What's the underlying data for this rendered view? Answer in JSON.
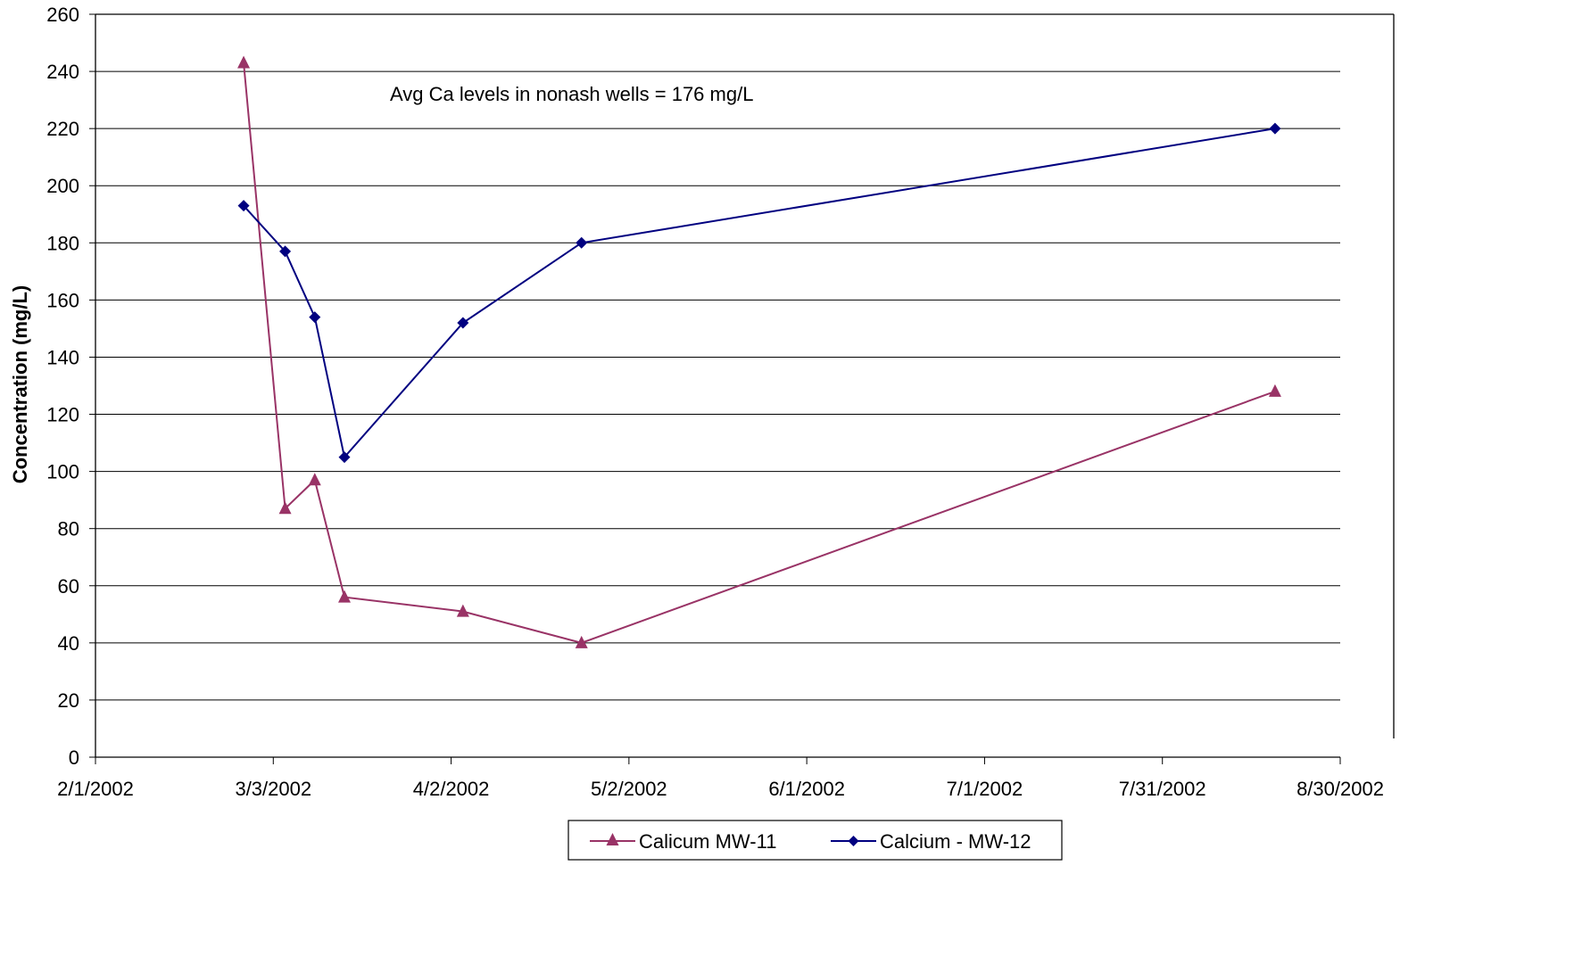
{
  "chart_data": {
    "type": "line",
    "title": "",
    "xlabel": "",
    "ylabel": "Concentration (mg/L)",
    "x_ticks": [
      "2/1/2002",
      "3/3/2002",
      "4/2/2002",
      "5/2/2002",
      "6/1/2002",
      "7/1/2002",
      "7/31/2002",
      "8/30/2002"
    ],
    "y_ticks": [
      "0",
      "20",
      "40",
      "60",
      "80",
      "100",
      "120",
      "140",
      "160",
      "180",
      "200",
      "220",
      "240",
      "260"
    ],
    "xlim": [
      "2002-02-01",
      "2002-08-30"
    ],
    "ylim": [
      0,
      260
    ],
    "grid": "horizontal",
    "legend_position": "bottom",
    "annotation": "Avg Ca levels in nonash wells = 176 mg/L",
    "series": [
      {
        "name": "Calicum MW-11",
        "color": "#993366",
        "marker": "triangle",
        "points": [
          {
            "x": "2002-02-26",
            "y": 243
          },
          {
            "x": "2002-03-05",
            "y": 87
          },
          {
            "x": "2002-03-10",
            "y": 97
          },
          {
            "x": "2002-03-15",
            "y": 56
          },
          {
            "x": "2002-04-04",
            "y": 51
          },
          {
            "x": "2002-04-24",
            "y": 40
          },
          {
            "x": "2002-08-19",
            "y": 128
          }
        ]
      },
      {
        "name": "Calcium - MW-12",
        "color": "#000080",
        "marker": "diamond",
        "points": [
          {
            "x": "2002-02-26",
            "y": 193
          },
          {
            "x": "2002-03-05",
            "y": 177
          },
          {
            "x": "2002-03-10",
            "y": 154
          },
          {
            "x": "2002-03-15",
            "y": 105
          },
          {
            "x": "2002-04-04",
            "y": 152
          },
          {
            "x": "2002-04-24",
            "y": 180
          },
          {
            "x": "2002-08-19",
            "y": 220
          }
        ]
      }
    ]
  }
}
